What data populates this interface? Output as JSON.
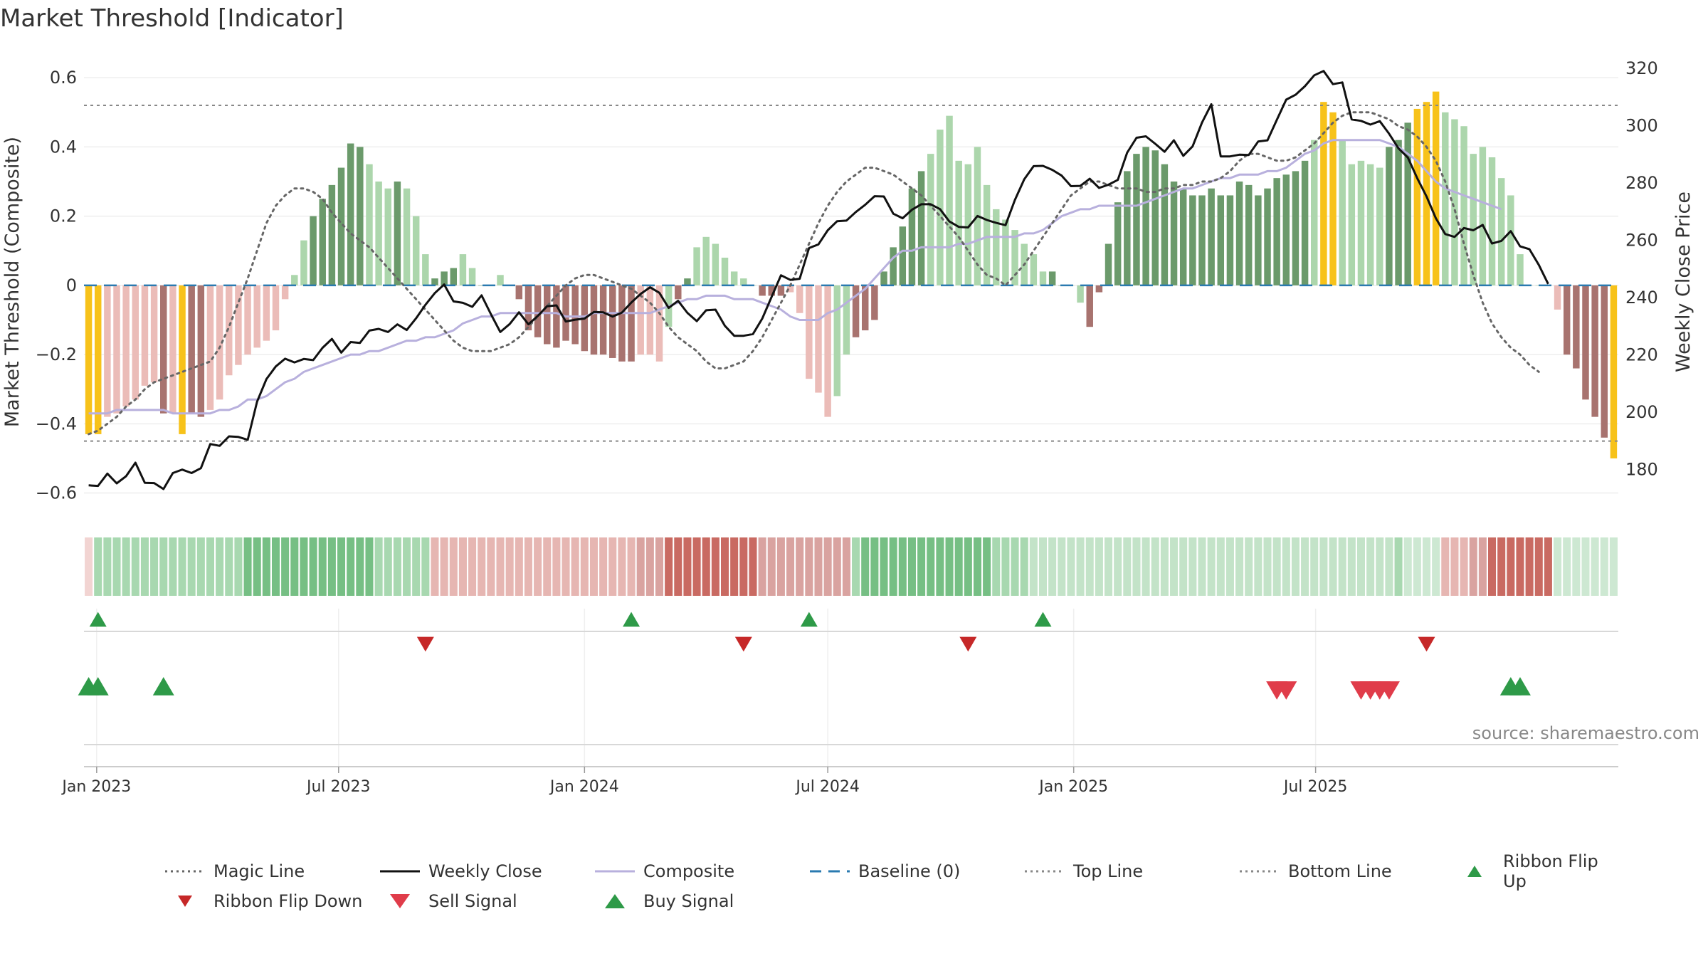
{
  "title": "Market Threshold [Indicator]",
  "source": "source: sharemaestro.com",
  "colors": {
    "strong_pos": "#6b9a6b",
    "weak_pos": "#acd6ac",
    "strong_neg": "#a8736f",
    "weak_neg": "#ebbcb8",
    "extreme": "#f7c21a",
    "weekly_close": "#111111",
    "composite": "#b8b0dd",
    "magic": "#666666",
    "baseline": "#2a7ab0",
    "threshold": "#888888",
    "flip_up": "#2e9a48",
    "flip_down": "#c62828",
    "sell": "#e03c4a",
    "buy": "#2e9a48"
  },
  "chart_data": {
    "type": "bar",
    "x_start": "2022-12-26",
    "x_step_days": 7,
    "x_ticks": [
      "Jan 2023",
      "Jul 2023",
      "Jan 2024",
      "Jul 2024",
      "Jan 2025",
      "Jul 2025"
    ],
    "x_tick_dates": [
      "2023-01-01",
      "2023-07-01",
      "2024-01-01",
      "2024-07-01",
      "2025-01-01",
      "2025-07-01"
    ],
    "y_left": {
      "label": "Market Threshold (Composite)",
      "range": [
        -0.64,
        0.66
      ],
      "ticks": [
        -0.6,
        -0.4,
        -0.2,
        0,
        0.2,
        0.4,
        0.6
      ]
    },
    "y_right": {
      "label": "Weekly Close Price",
      "range": [
        167,
        324
      ],
      "ticks": [
        180,
        200,
        220,
        240,
        260,
        280,
        300,
        320
      ]
    },
    "top_line": 0.52,
    "bottom_line": -0.45,
    "baseline": 0,
    "composite_bars": [
      -0.43,
      -0.43,
      -0.38,
      -0.37,
      -0.35,
      -0.33,
      -0.29,
      -0.28,
      -0.37,
      -0.37,
      -0.43,
      -0.37,
      -0.38,
      -0.36,
      -0.33,
      -0.26,
      -0.23,
      -0.2,
      -0.18,
      -0.16,
      -0.13,
      -0.04,
      0.03,
      0.13,
      0.2,
      0.25,
      0.29,
      0.34,
      0.41,
      0.4,
      0.35,
      0.3,
      0.28,
      0.3,
      0.28,
      0.2,
      0.09,
      0.02,
      0.04,
      0.05,
      0.09,
      0.05,
      0.0,
      0.0,
      0.03,
      0.0,
      -0.04,
      -0.13,
      -0.15,
      -0.17,
      -0.18,
      -0.16,
      -0.17,
      -0.19,
      -0.2,
      -0.2,
      -0.21,
      -0.22,
      -0.22,
      -0.2,
      -0.2,
      -0.22,
      -0.12,
      -0.04,
      0.02,
      0.11,
      0.14,
      0.12,
      0.08,
      0.04,
      0.02,
      0.0,
      -0.03,
      -0.03,
      -0.03,
      -0.02,
      -0.08,
      -0.27,
      -0.31,
      -0.38,
      -0.32,
      -0.2,
      -0.15,
      -0.13,
      -0.1,
      0.04,
      0.11,
      0.17,
      0.28,
      0.33,
      0.38,
      0.45,
      0.49,
      0.36,
      0.35,
      0.4,
      0.29,
      0.22,
      0.19,
      0.16,
      0.12,
      0.09,
      0.04,
      0.04,
      0.0,
      0.0,
      -0.05,
      -0.12,
      -0.02,
      0.12,
      0.24,
      0.33,
      0.38,
      0.4,
      0.39,
      0.35,
      0.3,
      0.28,
      0.26,
      0.26,
      0.28,
      0.26,
      0.26,
      0.3,
      0.29,
      0.26,
      0.28,
      0.31,
      0.32,
      0.33,
      0.36,
      0.42,
      0.53,
      0.5,
      0.42,
      0.35,
      0.36,
      0.35,
      0.34,
      0.4,
      0.42,
      0.47,
      0.51,
      0.53,
      0.56,
      0.5,
      0.48,
      0.46,
      0.38,
      0.4,
      0.37,
      0.31,
      0.26,
      0.09,
      0.0,
      0.0,
      0.0,
      -0.07,
      -0.2,
      -0.24,
      -0.33,
      -0.38,
      -0.44,
      -0.5
    ],
    "bar_color_codes": "EEDDDDDDSDESSDDDDDDDDDWWSSSSSSWWWSWWWSSSWWSSWWSSSSSSSSSSSSSDDDWSSWWWWWWDSSSDDDDDWWSSSSSSSSWWWWWWWWWWWWWSSDWSSSSSSSSSSSSSSSSSSSSSSSSWEEWWWWWSSSEEEWWWWWWWWWWWWDSSSSSE",
    "weekly_close": [
      174.5,
      174.3,
      178.6,
      175.2,
      177.7,
      182.4,
      175.4,
      175.3,
      173.2,
      178.8,
      180,
      178.8,
      180.5,
      188.9,
      188.3,
      191.6,
      191.4,
      190.4,
      203.7,
      211.6,
      216,
      218.7,
      217.4,
      218.6,
      218.2,
      222.5,
      225.6,
      220.8,
      224.5,
      224.2,
      228.5,
      229.1,
      228,
      230.7,
      228.7,
      232.8,
      237.5,
      241.6,
      244.6,
      238.7,
      238.2,
      236.8,
      240.8,
      234.2,
      228,
      230.8,
      234.9,
      230.7,
      233.6,
      237,
      237.3,
      231.7,
      232.3,
      232.7,
      235,
      234.9,
      233.4,
      234.8,
      238.3,
      241.3,
      243.6,
      241.7,
      236.4,
      238.9,
      234.7,
      231.8,
      235.6,
      235.8,
      230.2,
      226.7,
      226.7,
      227.3,
      232.7,
      240.3,
      247.8,
      246.2,
      246.6,
      257.3,
      258.6,
      263.5,
      266.7,
      266.9,
      269.9,
      272.4,
      275.4,
      275.3,
      269.3,
      267.7,
      270.7,
      272.6,
      272.6,
      270.9,
      266.6,
      264.7,
      264.5,
      268.5,
      267.1,
      266.1,
      265.3,
      274.1,
      281.3,
      285.9,
      286,
      284.6,
      282.6,
      278.9,
      279,
      281.5,
      278.3,
      279.4,
      281.1,
      290.6,
      295.8,
      296.3,
      293.7,
      290.9,
      294.9,
      289.5,
      292.8,
      301.1,
      307.5,
      289.3,
      289.3,
      289.9,
      289.8,
      294.5,
      294.9,
      302.1,
      309.1,
      310.8,
      313.8,
      317.6,
      319.1,
      314.5,
      315.1,
      302.2,
      301.7,
      300.4,
      301.6,
      297.2,
      292.1,
      288.9,
      281.7,
      275.3,
      267.7,
      262.2,
      261.2,
      264.3,
      263.5,
      265.4,
      258.9,
      259.8,
      263.2,
      257.9,
      256.9,
      251.4,
      244.8
    ],
    "magic_line": [
      -0.43,
      -0.42,
      -0.4,
      -0.38,
      -0.35,
      -0.33,
      -0.3,
      -0.28,
      -0.27,
      -0.26,
      -0.25,
      -0.24,
      -0.23,
      -0.22,
      -0.18,
      -0.12,
      -0.05,
      0.02,
      0.1,
      0.18,
      0.23,
      0.26,
      0.28,
      0.28,
      0.27,
      0.25,
      0.21,
      0.18,
      0.15,
      0.13,
      0.11,
      0.08,
      0.05,
      0.02,
      -0.01,
      -0.04,
      -0.07,
      -0.1,
      -0.13,
      -0.16,
      -0.18,
      -0.19,
      -0.19,
      -0.19,
      -0.18,
      -0.17,
      -0.15,
      -0.12,
      -0.09,
      -0.06,
      -0.03,
      0.0,
      0.02,
      0.03,
      0.03,
      0.02,
      0.01,
      0.0,
      -0.01,
      -0.03,
      -0.05,
      -0.08,
      -0.12,
      -0.15,
      -0.17,
      -0.19,
      -0.22,
      -0.24,
      -0.24,
      -0.23,
      -0.22,
      -0.19,
      -0.15,
      -0.1,
      -0.05,
      0.0,
      0.06,
      0.12,
      0.18,
      0.23,
      0.27,
      0.3,
      0.32,
      0.34,
      0.34,
      0.33,
      0.32,
      0.3,
      0.28,
      0.26,
      0.23,
      0.2,
      0.17,
      0.14,
      0.1,
      0.06,
      0.03,
      0.02,
      0.0,
      0.03,
      0.06,
      0.1,
      0.14,
      0.18,
      0.22,
      0.26,
      0.28,
      0.3,
      0.3,
      0.29,
      0.28,
      0.28,
      0.28,
      0.27,
      0.27,
      0.28,
      0.28,
      0.29,
      0.29,
      0.3,
      0.3,
      0.31,
      0.33,
      0.36,
      0.38,
      0.38,
      0.37,
      0.36,
      0.36,
      0.37,
      0.39,
      0.41,
      0.44,
      0.47,
      0.49,
      0.5,
      0.5,
      0.5,
      0.49,
      0.48,
      0.46,
      0.45,
      0.43,
      0.4,
      0.36,
      0.3,
      0.22,
      0.12,
      0.03,
      -0.05,
      -0.11,
      -0.15,
      -0.18,
      -0.2,
      -0.23,
      -0.25
    ],
    "composite_line": [
      -0.37,
      -0.37,
      -0.37,
      -0.36,
      -0.36,
      -0.36,
      -0.36,
      -0.36,
      -0.36,
      -0.37,
      -0.37,
      -0.37,
      -0.37,
      -0.37,
      -0.36,
      -0.36,
      -0.35,
      -0.33,
      -0.33,
      -0.32,
      -0.3,
      -0.28,
      -0.27,
      -0.25,
      -0.24,
      -0.23,
      -0.22,
      -0.21,
      -0.2,
      -0.2,
      -0.19,
      -0.19,
      -0.18,
      -0.17,
      -0.16,
      -0.16,
      -0.15,
      -0.15,
      -0.14,
      -0.13,
      -0.11,
      -0.1,
      -0.09,
      -0.09,
      -0.08,
      -0.08,
      -0.08,
      -0.08,
      -0.08,
      -0.08,
      -0.08,
      -0.09,
      -0.09,
      -0.09,
      -0.08,
      -0.08,
      -0.08,
      -0.08,
      -0.08,
      -0.08,
      -0.08,
      -0.07,
      -0.06,
      -0.05,
      -0.04,
      -0.04,
      -0.03,
      -0.03,
      -0.03,
      -0.04,
      -0.04,
      -0.04,
      -0.05,
      -0.06,
      -0.07,
      -0.09,
      -0.1,
      -0.1,
      -0.1,
      -0.08,
      -0.07,
      -0.05,
      -0.03,
      -0.01,
      0.02,
      0.05,
      0.08,
      0.1,
      0.1,
      0.11,
      0.11,
      0.11,
      0.11,
      0.12,
      0.12,
      0.13,
      0.14,
      0.14,
      0.14,
      0.14,
      0.15,
      0.15,
      0.16,
      0.18,
      0.2,
      0.21,
      0.22,
      0.22,
      0.23,
      0.23,
      0.23,
      0.23,
      0.23,
      0.24,
      0.25,
      0.26,
      0.27,
      0.28,
      0.28,
      0.29,
      0.3,
      0.31,
      0.31,
      0.32,
      0.32,
      0.32,
      0.33,
      0.33,
      0.34,
      0.36,
      0.38,
      0.39,
      0.41,
      0.42,
      0.42,
      0.42,
      0.42,
      0.42,
      0.42,
      0.41,
      0.4,
      0.38,
      0.36,
      0.33,
      0.3,
      0.28,
      0.27,
      0.26,
      0.25,
      0.24,
      0.23,
      0.22
    ],
    "ribbon_color_codes": "0111111111111111122222222222222111111555555555555555555555566677777777776666666666122222222222222111111111111111111111111111111111111111111111111555667777777",
    "ribbon_flip_up_weeks": [
      1,
      58,
      77,
      102
    ],
    "ribbon_flip_down_weeks": [
      36,
      70,
      94,
      143
    ],
    "buy_signal_weeks": [
      0,
      1,
      8,
      152,
      153
    ],
    "sell_signal_weeks": [
      127,
      128,
      136,
      137,
      138,
      139
    ]
  },
  "legend": [
    {
      "label": "Magic Line",
      "kind": "dot-line",
      "color": "magic"
    },
    {
      "label": "Weekly Close",
      "kind": "solid-line",
      "color": "weekly_close"
    },
    {
      "label": "Composite",
      "kind": "solid-line",
      "color": "composite"
    },
    {
      "label": "Baseline (0)",
      "kind": "dash-line",
      "color": "baseline"
    },
    {
      "label": "Top Line",
      "kind": "dot-line",
      "color": "threshold"
    },
    {
      "label": "Bottom Line",
      "kind": "dot-line",
      "color": "threshold"
    },
    {
      "label": "Ribbon Flip Up",
      "kind": "tri-up",
      "color": "flip_up"
    },
    {
      "label": "Ribbon Flip Down",
      "kind": "tri-down",
      "color": "flip_down"
    },
    {
      "label": "Sell Signal",
      "kind": "tri-down-big",
      "color": "sell"
    },
    {
      "label": "Buy Signal",
      "kind": "tri-up-big",
      "color": "buy"
    }
  ]
}
